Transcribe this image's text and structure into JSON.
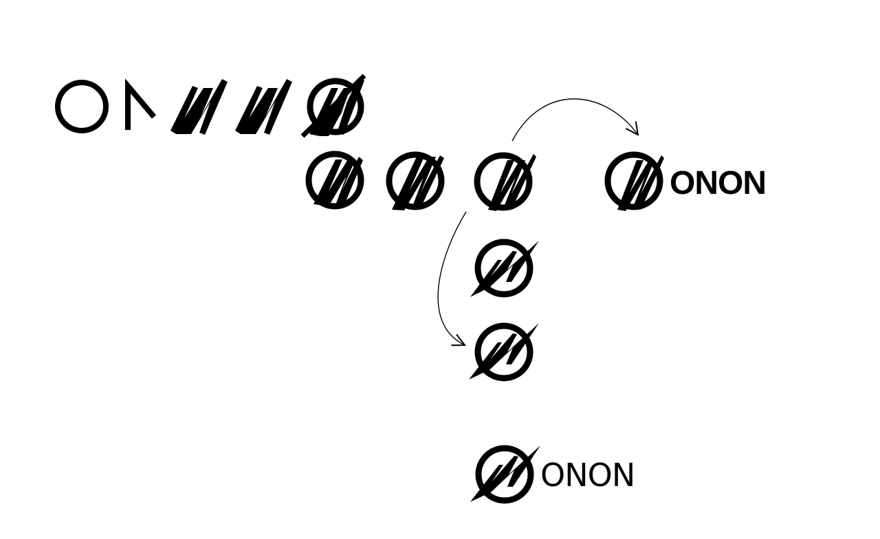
{
  "wordmarks": {
    "primary": "ONON",
    "final": "ONON"
  },
  "colors": {
    "ink": "#000000",
    "background": "#ffffff"
  }
}
